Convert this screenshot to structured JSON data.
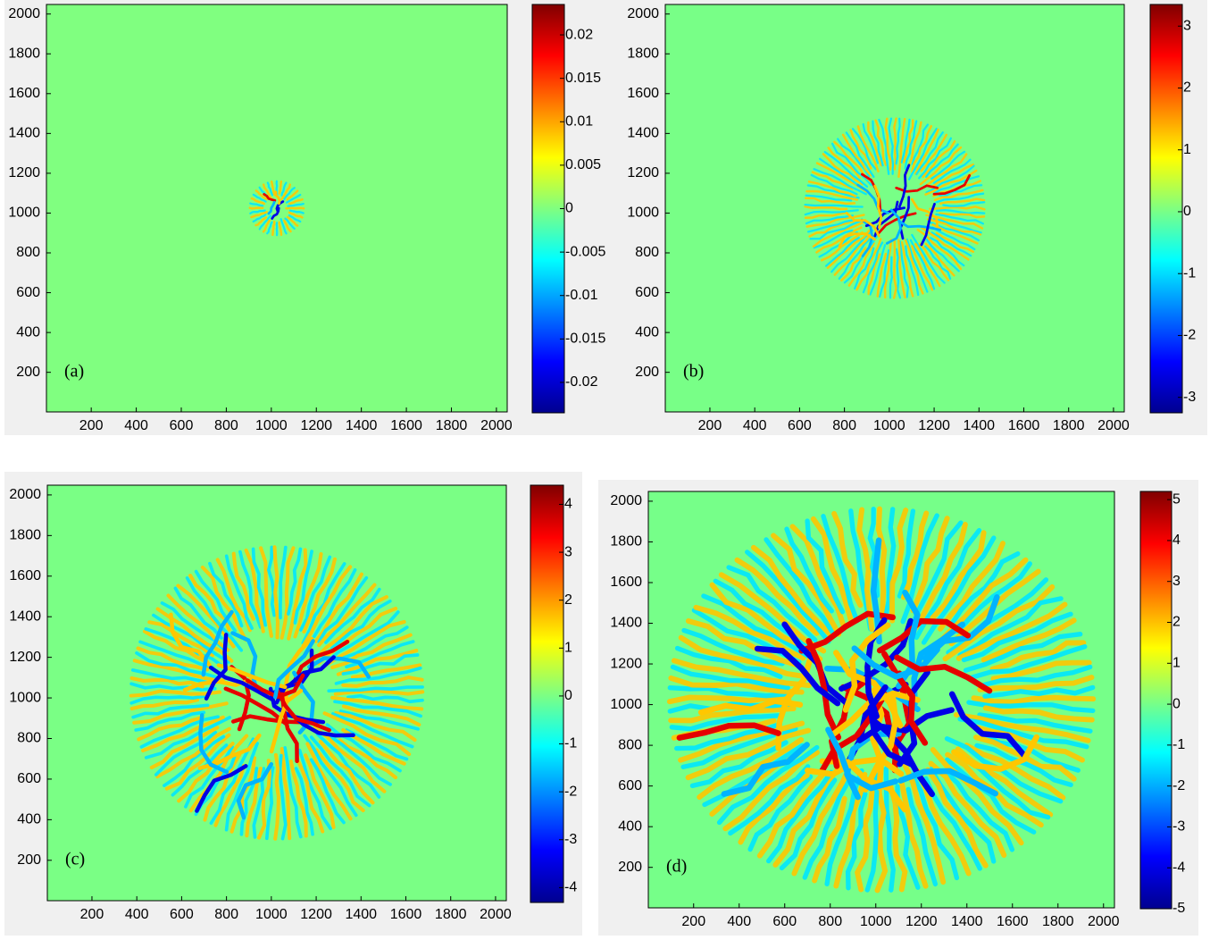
{
  "chart_data": [
    {
      "type": "heatmap",
      "label": "(a)",
      "xlim": [
        1,
        2048
      ],
      "ylim": [
        1,
        2048
      ],
      "xticks": [
        200,
        400,
        600,
        800,
        1000,
        1200,
        1400,
        1600,
        1800,
        2000
      ],
      "yticks": [
        200,
        400,
        600,
        800,
        1000,
        1200,
        1400,
        1600,
        1800,
        2000
      ],
      "clim": [
        -0.0235,
        0.0235
      ],
      "cticks": [
        -0.02,
        -0.015,
        -0.01,
        -0.005,
        0,
        0.005,
        0.01,
        0.015,
        0.02
      ]
    },
    {
      "type": "heatmap",
      "label": "(b)",
      "xlim": [
        1,
        2048
      ],
      "ylim": [
        1,
        2048
      ],
      "xticks": [
        200,
        400,
        600,
        800,
        1000,
        1200,
        1400,
        1600,
        1800,
        2000
      ],
      "yticks": [
        200,
        400,
        600,
        800,
        1000,
        1200,
        1400,
        1600,
        1800,
        2000
      ],
      "clim": [
        -3.25,
        3.35
      ],
      "cticks": [
        -3,
        -2,
        -1,
        0,
        1,
        2,
        3
      ]
    },
    {
      "type": "heatmap",
      "label": "(c)",
      "xlim": [
        1,
        2048
      ],
      "ylim": [
        1,
        2048
      ],
      "xticks": [
        200,
        400,
        600,
        800,
        1000,
        1200,
        1400,
        1600,
        1800,
        2000
      ],
      "yticks": [
        200,
        400,
        600,
        800,
        1000,
        1200,
        1400,
        1600,
        1800,
        2000
      ],
      "clim": [
        -4.31,
        4.4
      ],
      "cticks": [
        -4,
        -3,
        -2,
        -1,
        0,
        1,
        2,
        3,
        4
      ]
    },
    {
      "type": "heatmap",
      "label": "(d)",
      "xlim": [
        1,
        2048
      ],
      "ylim": [
        1,
        2048
      ],
      "xticks": [
        200,
        400,
        600,
        800,
        1000,
        1200,
        1400,
        1600,
        1800,
        2000
      ],
      "yticks": [
        200,
        400,
        600,
        800,
        1000,
        1200,
        1400,
        1600,
        1800,
        2000
      ],
      "clim": [
        -5,
        5.2
      ],
      "cticks": [
        -5,
        -4,
        -3,
        -2,
        -1,
        0,
        1,
        2,
        3,
        4,
        5
      ]
    }
  ]
}
